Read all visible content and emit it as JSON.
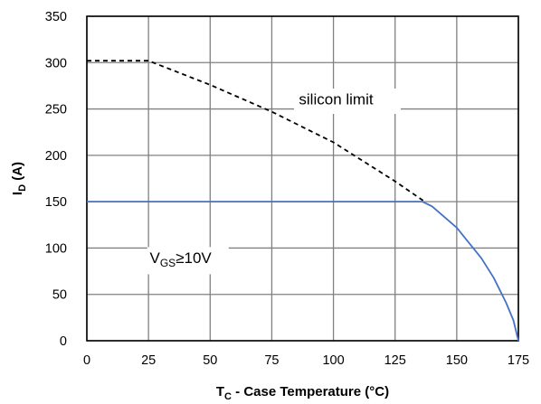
{
  "chart_data": {
    "type": "line",
    "xlabel": {
      "main": "T",
      "sub": "C",
      "rest": " - Case Temperature (°C)"
    },
    "ylabel": {
      "main": "I",
      "sub": "D",
      "rest": " (A)"
    },
    "xlim": [
      0,
      175
    ],
    "ylim": [
      0,
      350
    ],
    "xticks": [
      0,
      25,
      50,
      75,
      100,
      125,
      150,
      175
    ],
    "yticks": [
      0,
      50,
      100,
      150,
      200,
      250,
      300,
      350
    ],
    "grid": true,
    "annotations": [
      {
        "id": "silicon",
        "text": "silicon limit"
      },
      {
        "id": "vgs",
        "main": "V",
        "sub": "GS",
        "rest": "≥10V"
      }
    ],
    "series": [
      {
        "style": "dashed",
        "color": "#000000",
        "x": [
          0,
          25,
          50,
          75,
          100,
          125,
          137
        ],
        "y": [
          302,
          302,
          276,
          247,
          214,
          172,
          150
        ]
      },
      {
        "style": "solid",
        "color": "#4472c4",
        "x": [
          0,
          136,
          140,
          150,
          160,
          165,
          170,
          173,
          175
        ],
        "y": [
          150,
          150,
          145,
          122,
          89,
          68,
          41,
          22,
          0
        ]
      }
    ]
  },
  "colors": {
    "grid": "#808080",
    "frame": "#000000",
    "limit_line": "#000000",
    "current_line": "#4472c4"
  }
}
